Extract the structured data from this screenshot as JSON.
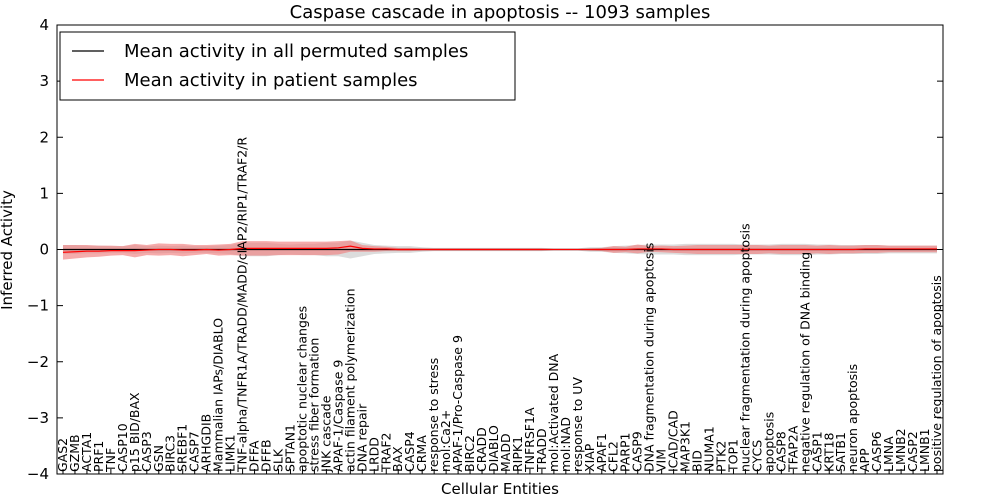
{
  "chart_data": {
    "type": "line",
    "title": "Caspase cascade in apoptosis -- 1093 samples",
    "xlabel": "Cellular Entities",
    "ylabel": "Inferred Activity",
    "ylim": [
      -4,
      4
    ],
    "yticks": [
      "−4",
      "−3",
      "−2",
      "−1",
      "0",
      "1",
      "2",
      "3",
      "4"
    ],
    "yticks_values": [
      -4,
      -3,
      -2,
      -1,
      0,
      1,
      2,
      3,
      4
    ],
    "legend_position": "top-left",
    "categories": [
      "GAS2",
      "GZMB",
      "ACTA1",
      "PRF1",
      "TNF",
      "CASP10",
      "p15 BID/BAX",
      "CASP3",
      "GSN",
      "BIRC3",
      "SREBF1",
      "CASP7",
      "ARHGDIB",
      "Mammalian IAPs/DIABLO",
      "LIMK1",
      "TNF-alpha/TNFR1A/TRADD/MADD/cIAP2/RIP1/TRAF2/R",
      "DFFA",
      "DFFB",
      "SLK",
      "SPTAN1",
      "apoptotic nuclear changes",
      "stress fiber formation",
      "JNK cascade",
      "APAF-1/Caspase 9",
      "actin filament polymerization",
      "DNA repair",
      "LRDD",
      "TRAF2",
      "BAX",
      "CASP4",
      "CRMA",
      "response to stress",
      "mol:Ca2+",
      "APAF-1/Pro-Caspase 9",
      "BIRC2",
      "CRADD",
      "DIABLO",
      "MADD",
      "RIPK1",
      "TNFRSF1A",
      "TRADD",
      "mol:Activated DNA",
      "mol:NAD",
      "response to UV",
      "XIAP",
      "APAF1",
      "CFL2",
      "PARP1",
      "CASP9",
      "DNA fragmentation during apoptosis",
      "VIM",
      "ICAD/CAD",
      "MAP3K1",
      "BID",
      "NUMA1",
      "PTK2",
      "TOP1",
      "nuclear fragmentation during apoptosis",
      "CYCS",
      "apoptosis",
      "CASP8",
      "TFAP2A",
      "negative regulation of DNA binding",
      "CASP1",
      "KRT18",
      "SATB1",
      "neuron apoptosis",
      "APP",
      "CASP6",
      "LMNA",
      "LMNB2",
      "CASP2",
      "LMNB1",
      "positive regulation of apoptosis"
    ],
    "series": [
      {
        "name": "Mean activity in all permuted samples",
        "color": "#000000",
        "band_color": "#bfbfbf",
        "values": [
          0,
          0,
          0,
          0,
          0,
          0,
          0,
          0,
          0,
          0,
          0,
          0,
          0,
          0,
          0,
          0,
          0,
          0,
          0,
          0,
          0,
          0,
          0,
          0,
          0,
          0,
          0,
          0,
          0,
          0,
          0,
          0,
          0,
          0,
          0,
          0,
          0,
          0,
          0,
          0,
          0,
          0,
          0,
          0,
          0,
          0,
          0,
          0,
          0,
          0,
          0,
          0,
          0,
          0,
          0,
          0,
          0,
          0,
          0,
          0,
          0,
          0,
          0,
          0,
          0,
          0,
          0,
          0,
          0,
          0,
          0,
          0,
          0,
          0
        ],
        "band": [
          0.08,
          0.08,
          0.07,
          0.07,
          0.06,
          0.06,
          0.08,
          0.06,
          0.07,
          0.06,
          0.07,
          0.06,
          0.06,
          0.07,
          0.08,
          0.12,
          0.12,
          0.12,
          0.1,
          0.09,
          0.1,
          0.1,
          0.12,
          0.12,
          0.16,
          0.12,
          0.08,
          0.07,
          0.06,
          0.06,
          0.04,
          0.03,
          0.03,
          0.03,
          0.03,
          0.03,
          0.03,
          0.03,
          0.03,
          0.03,
          0.03,
          0.02,
          0.02,
          0.02,
          0.04,
          0.04,
          0.06,
          0.07,
          0.08,
          0.09,
          0.09,
          0.09,
          0.1,
          0.1,
          0.1,
          0.1,
          0.1,
          0.09,
          0.09,
          0.09,
          0.1,
          0.1,
          0.1,
          0.09,
          0.09,
          0.08,
          0.08,
          0.08,
          0.08,
          0.07,
          0.07,
          0.07,
          0.07,
          0.07
        ]
      },
      {
        "name": "Mean activity in patient samples",
        "color": "#ff0000",
        "band_color": "#f08080",
        "values": [
          -0.05,
          -0.04,
          -0.03,
          -0.03,
          -0.02,
          -0.02,
          -0.02,
          -0.01,
          0,
          0,
          -0.01,
          -0.01,
          0,
          -0.01,
          0,
          0.02,
          0.02,
          0.02,
          0.02,
          0.02,
          0.02,
          0.02,
          0.02,
          0.03,
          0.06,
          0.02,
          0.01,
          0.01,
          0,
          0,
          0,
          0,
          0,
          0,
          0,
          0,
          0,
          0,
          0,
          0,
          0,
          0,
          0,
          0,
          0,
          0,
          0,
          0,
          0.01,
          0.01,
          0.01,
          0,
          0,
          0,
          0,
          0,
          0,
          0,
          0,
          0,
          0,
          0,
          0,
          0,
          0,
          0,
          0,
          0.01,
          0.01,
          0.01,
          0.01,
          0.01,
          0.01,
          0.01
        ],
        "band": [
          0.13,
          0.12,
          0.11,
          0.1,
          0.09,
          0.08,
          0.12,
          0.09,
          0.11,
          0.1,
          0.11,
          0.09,
          0.08,
          0.1,
          0.1,
          0.13,
          0.13,
          0.13,
          0.12,
          0.12,
          0.12,
          0.12,
          0.12,
          0.12,
          0.1,
          0.06,
          0.05,
          0.04,
          0.03,
          0.03,
          0.02,
          0.02,
          0.02,
          0.02,
          0.02,
          0.02,
          0.02,
          0.02,
          0.02,
          0.02,
          0.02,
          0.01,
          0.01,
          0.01,
          0.02,
          0.03,
          0.06,
          0.05,
          0.08,
          0.05,
          0.06,
          0.06,
          0.07,
          0.08,
          0.08,
          0.08,
          0.08,
          0.08,
          0.08,
          0.07,
          0.08,
          0.08,
          0.08,
          0.07,
          0.08,
          0.07,
          0.07,
          0.07,
          0.07,
          0.06,
          0.06,
          0.06,
          0.06,
          0.06
        ]
      }
    ]
  }
}
